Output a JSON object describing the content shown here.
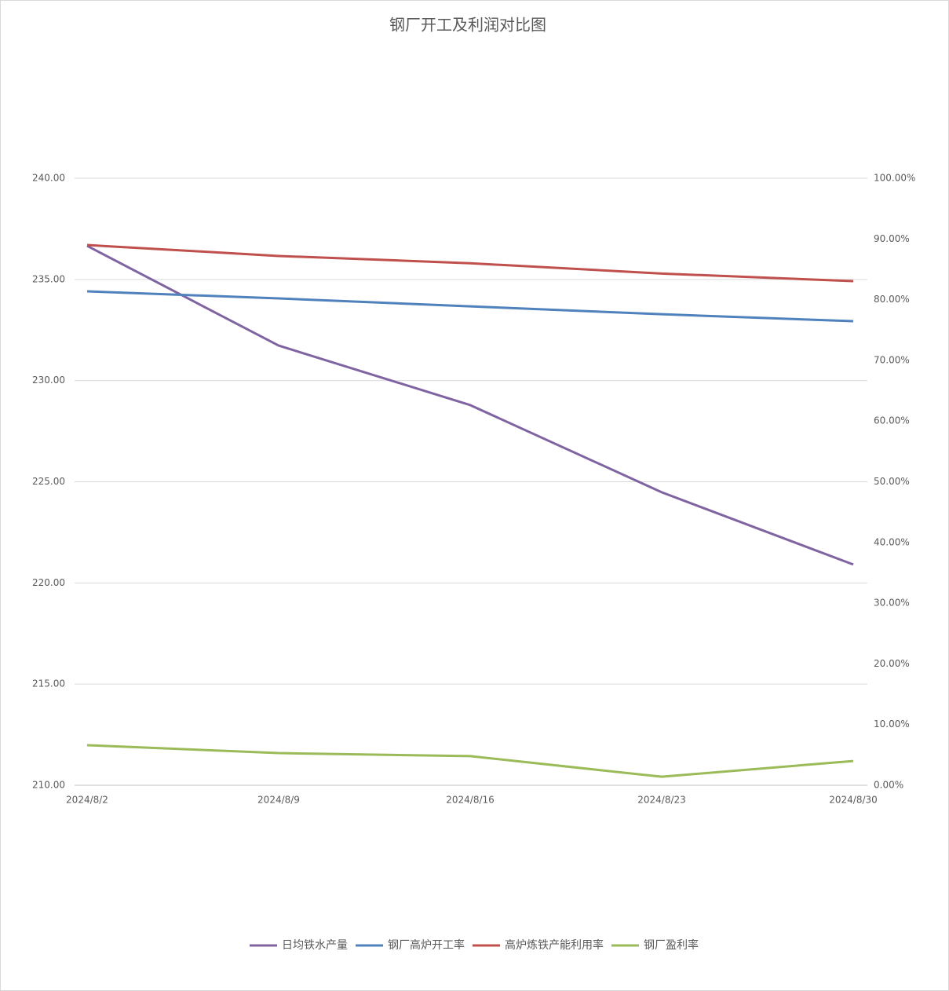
{
  "chart_data": {
    "type": "line",
    "title": "钢厂开工及利润对比图",
    "categories": [
      "2024/8/2",
      "2024/8/9",
      "2024/8/16",
      "2024/8/23",
      "2024/8/30"
    ],
    "series": [
      {
        "name": "日均铁水产量",
        "color": "#8064a2",
        "values": [
          236.66,
          231.73,
          228.79,
          224.48,
          220.91
        ]
      },
      {
        "name": "钢厂高炉开工率",
        "color": "#4f81bd",
        "axis": "y2",
        "values": [
          81.37,
          80.2,
          78.9,
          77.6,
          76.45
        ]
      },
      {
        "name": "高炉炼铁产能利用率",
        "color": "#c0504d",
        "axis": "y2",
        "values": [
          89.0,
          87.2,
          86.0,
          84.3,
          83.05
        ]
      },
      {
        "name": "钢厂盈利率",
        "color": "#9bbb59",
        "axis": "y2",
        "values": [
          6.6,
          5.3,
          4.8,
          1.4,
          4.0
        ]
      }
    ],
    "ylim": [
      210,
      240
    ],
    "yticks": [
      {
        "value": 210,
        "label": "210.00"
      },
      {
        "value": 215,
        "label": "215.00"
      },
      {
        "value": 220,
        "label": "220.00"
      },
      {
        "value": 225,
        "label": "225.00"
      },
      {
        "value": 230,
        "label": "230.00"
      },
      {
        "value": 235,
        "label": "235.00"
      },
      {
        "value": 240,
        "label": "240.00"
      }
    ],
    "y2lim": [
      0,
      100
    ],
    "y2ticks": [
      {
        "value": 0,
        "label": "0.00%"
      },
      {
        "value": 10,
        "label": "10.00%"
      },
      {
        "value": 20,
        "label": "20.00%"
      },
      {
        "value": 30,
        "label": "30.00%"
      },
      {
        "value": 40,
        "label": "40.00%"
      },
      {
        "value": 50,
        "label": "50.00%"
      },
      {
        "value": 60,
        "label": "60.00%"
      },
      {
        "value": 70,
        "label": "70.00%"
      },
      {
        "value": 80,
        "label": "80.00%"
      },
      {
        "value": 90,
        "label": "90.00%"
      },
      {
        "value": 100,
        "label": "100.00%"
      }
    ],
    "grid": true,
    "legend": "bottom"
  }
}
